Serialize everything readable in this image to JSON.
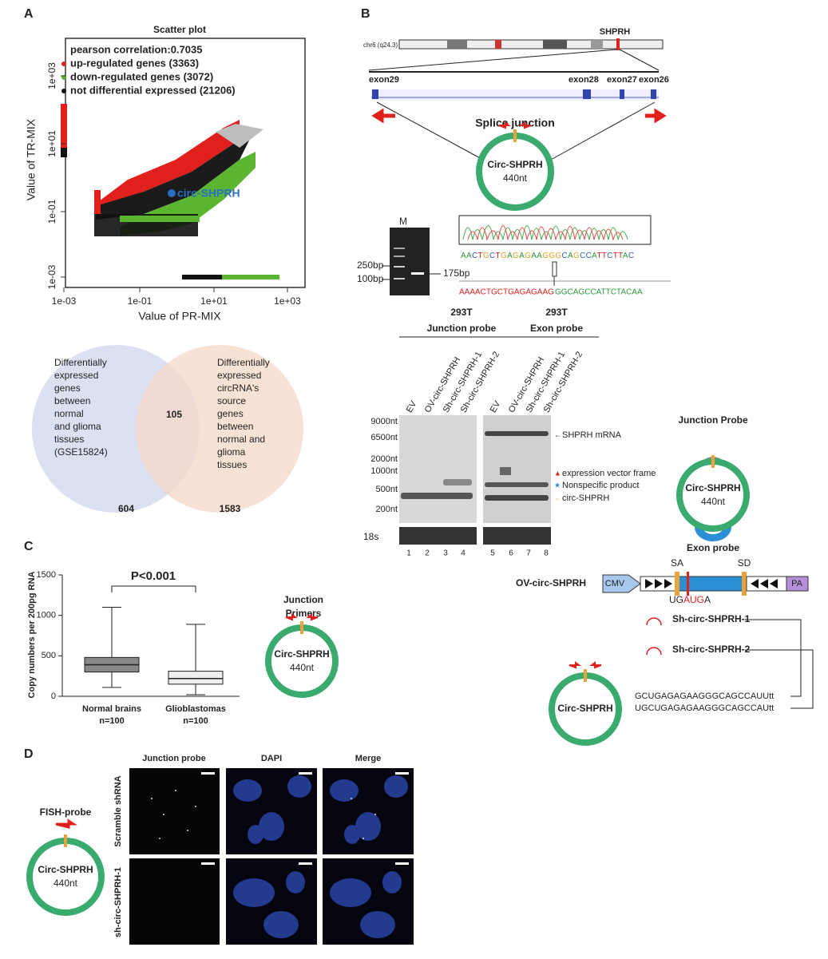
{
  "panel_labels": [
    "A",
    "B",
    "C",
    "D"
  ],
  "scatter": {
    "title": "Scatter plot",
    "legend": [
      {
        "text": "pearson correlation:0.7035"
      },
      {
        "text": "up-regulated genes (3363)",
        "color": "#e0201c"
      },
      {
        "text": "down-regulated genes (3072)",
        "color": "#5cb531"
      },
      {
        "text": "not differential expressed (21206)",
        "color": "#111111"
      }
    ],
    "x_label": "Value of PR-MIX",
    "y_label": "Value of TR-MIX",
    "xticks": [
      "1e-03",
      "1e-01",
      "1e+01",
      "1e+03"
    ],
    "yticks": [
      "1e-03",
      "1e-01",
      "1e+01",
      "1e+03"
    ],
    "annotation": "circ-SHPRH"
  },
  "venn": {
    "left_text": [
      "Differentially",
      "expressed",
      "genes",
      "between",
      "normal",
      "and glioma",
      "tissues",
      "(GSE15824)"
    ],
    "overlap": "105",
    "right_text": [
      "Differentially",
      "expressed",
      "circRNA's",
      "source",
      "genes",
      "between",
      "normal and",
      "glioma",
      "tissues"
    ],
    "left_count": "604",
    "right_count": "1583"
  },
  "gene_map": {
    "locus": "chr6 (q24.3)",
    "gene": "SHPRH",
    "exons": [
      "exon29",
      "exon28",
      "exon27",
      "exon26"
    ],
    "splice_label": "Splice junction",
    "circle_name": "Circ-SHPRH",
    "circle_size": "440nt"
  },
  "gel": {
    "lane": "M",
    "markers": [
      "250bp",
      "100bp"
    ],
    "band": "175bp"
  },
  "sanger": {
    "sequence": "AACTGCTGAGAGAAGGGCAGCCATTCTTAC",
    "left": "AAAACTGCTGAGAGAAG",
    "right": "GGCAGCCATTCTACAA"
  },
  "northern": {
    "cells": [
      "293T",
      "293T"
    ],
    "probes": [
      "Junction probe",
      "Exon probe"
    ],
    "lanes": [
      "EV",
      "OV-circ-SHPRH",
      "Sh-circ-SHPRH-1",
      "Sh-circ-SHPRH-2",
      "EV",
      "OV-circ-SHPRH",
      "Sh-circ-SHPRH-1",
      "Sh-circ-SHPRH-2"
    ],
    "sizes": [
      "9000nt",
      "6500nt",
      "2000nt",
      "1000nt",
      "500nt",
      "200nt"
    ],
    "bands": [
      "SHPRH mRNA",
      "expression vector frame",
      "Nonspecific product",
      "circ-SHPRH"
    ],
    "loading": "18s",
    "lane_numbers": [
      "1",
      "2",
      "3",
      "4",
      "5",
      "6",
      "7",
      "8"
    ]
  },
  "construct": {
    "junction_probe": "Junction Probe",
    "exon_probe": "Exon probe",
    "name": "OV-circ-SHPRH",
    "promoter": "CMV",
    "sa": "SA",
    "sd": "SD",
    "codon": [
      "UG",
      "AUG",
      "A"
    ],
    "polya": "PA",
    "shrnas": [
      "Sh-circ-SHPRH-1",
      "Sh-circ-SHPRH-2"
    ],
    "circle_name": "Circ-SHPRH",
    "targets": [
      "GCUGAGAGAAGGGCAGCCAUUtt",
      "UGCUGAGAGAAGGGCAGCCAUtt"
    ]
  },
  "chart_data": {
    "type": "box",
    "y_label": "Copy numbers per 200pg RNA",
    "ylim": [
      0,
      1500
    ],
    "yticks": [
      0,
      500,
      1000,
      1500
    ],
    "groups": [
      {
        "name": "Normal brains",
        "n": "n=100",
        "min": 110,
        "q1": 300,
        "median": 390,
        "q3": 480,
        "max": 1100
      },
      {
        "name": "Glioblastomas",
        "n": "n=100",
        "min": 20,
        "q1": 150,
        "median": 220,
        "q3": 310,
        "max": 890
      }
    ],
    "p_value": "P<0.001",
    "primers": [
      "Junction",
      "Primers"
    ]
  },
  "fish": {
    "probe": "FISH-probe",
    "columns": [
      "Junction probe",
      "DAPI",
      "Merge"
    ],
    "rows": [
      "Scramble shRNA",
      "sh-circ-SHPRH-1"
    ]
  }
}
